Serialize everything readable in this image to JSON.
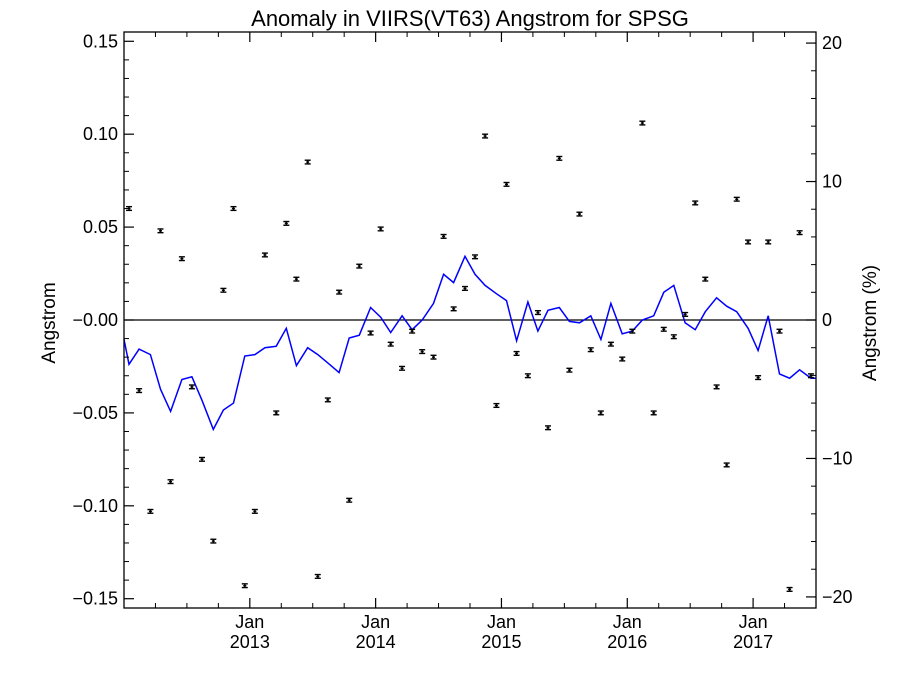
{
  "chart_data": {
    "type": "scatter",
    "title": "Anomaly in VIIRS(VT63) Angstrom for SPSG",
    "ylabel": "Angstrom",
    "y2label": "Angstrom (%)",
    "ylim": [
      -0.155,
      0.155
    ],
    "y2lim": [
      -20.8,
      20.8
    ],
    "xlim": [
      2012.0,
      2017.5
    ],
    "grid": false,
    "zero_line": true,
    "yticks": [
      -0.15,
      -0.1,
      -0.05,
      0.0,
      0.05,
      0.1,
      0.15
    ],
    "ytick_labels": [
      "−0.15",
      "−0.10",
      "−0.05",
      "−0.00",
      "0.05",
      "0.10",
      "0.15"
    ],
    "y2ticks": [
      -20,
      -10,
      0,
      10,
      20
    ],
    "y2tick_labels": [
      "−20",
      "−10",
      "0",
      "10",
      "20"
    ],
    "xticks": [
      {
        "x": 2013.0,
        "month": "Jan",
        "year": "2013"
      },
      {
        "x": 2014.0,
        "month": "Jan",
        "year": "2014"
      },
      {
        "x": 2015.0,
        "month": "Jan",
        "year": "2015"
      },
      {
        "x": 2016.0,
        "month": "Jan",
        "year": "2016"
      },
      {
        "x": 2017.0,
        "month": "Jan",
        "year": "2017"
      }
    ],
    "series": [
      {
        "kind": "points_with_errorbars",
        "color": "#000000",
        "error": 0.001,
        "x": [
          2012.04,
          2012.12,
          2012.21,
          2012.29,
          2012.37,
          2012.46,
          2012.54,
          2012.62,
          2012.71,
          2012.79,
          2012.87,
          2012.96,
          2013.04,
          2013.12,
          2013.21,
          2013.29,
          2013.37,
          2013.46,
          2013.54,
          2013.62,
          2013.71,
          2013.79,
          2013.87,
          2013.96,
          2014.04,
          2014.12,
          2014.21,
          2014.29,
          2014.37,
          2014.46,
          2014.54,
          2014.62,
          2014.71,
          2014.79,
          2014.87,
          2014.96,
          2015.04,
          2015.12,
          2015.21,
          2015.29,
          2015.37,
          2015.46,
          2015.54,
          2015.62,
          2015.71,
          2015.79,
          2015.87,
          2015.96,
          2016.04,
          2016.12,
          2016.21,
          2016.29,
          2016.37,
          2016.46,
          2016.54,
          2016.62,
          2016.71,
          2016.79,
          2016.87,
          2016.96,
          2017.04,
          2017.12,
          2017.21,
          2017.29,
          2017.37,
          2017.46
        ],
        "y": [
          0.06,
          -0.038,
          -0.103,
          0.048,
          -0.087,
          0.033,
          -0.036,
          -0.075,
          -0.119,
          0.016,
          0.06,
          -0.143,
          -0.103,
          0.035,
          -0.05,
          0.052,
          0.022,
          0.085,
          -0.138,
          -0.043,
          0.015,
          -0.097,
          0.029,
          -0.007,
          0.049,
          -0.013,
          -0.026,
          -0.006,
          -0.017,
          -0.02,
          0.045,
          0.006,
          0.017,
          0.034,
          0.099,
          -0.046,
          0.073,
          -0.018,
          -0.03,
          0.004,
          -0.058,
          0.087,
          -0.027,
          0.057,
          -0.016,
          -0.05,
          -0.013,
          -0.021,
          -0.006,
          0.106,
          -0.05,
          -0.005,
          -0.009,
          0.003,
          0.063,
          0.022,
          -0.036,
          -0.078,
          0.065,
          0.042,
          -0.031,
          0.042,
          -0.006,
          -0.145,
          0.047,
          -0.03
        ]
      },
      {
        "kind": "line",
        "axis": "y2",
        "color": "#0000ff",
        "x": [
          2012.0,
          2012.04,
          2012.12,
          2012.21,
          2012.29,
          2012.37,
          2012.46,
          2012.54,
          2012.62,
          2012.71,
          2012.79,
          2012.87,
          2012.96,
          2013.04,
          2013.12,
          2013.21,
          2013.29,
          2013.37,
          2013.46,
          2013.54,
          2013.62,
          2013.71,
          2013.79,
          2013.87,
          2013.96,
          2014.04,
          2014.12,
          2014.21,
          2014.29,
          2014.37,
          2014.46,
          2014.54,
          2014.62,
          2014.71,
          2014.79,
          2014.87,
          2014.96,
          2015.04,
          2015.12,
          2015.21,
          2015.29,
          2015.37,
          2015.46,
          2015.54,
          2015.62,
          2015.71,
          2015.79,
          2015.87,
          2015.96,
          2016.04,
          2016.12,
          2016.21,
          2016.29,
          2016.37,
          2016.46,
          2016.54,
          2016.62,
          2016.71,
          2016.79,
          2016.87,
          2016.96,
          2017.04,
          2017.12,
          2017.21,
          2017.29,
          2017.37,
          2017.46,
          2017.5
        ],
        "y": [
          -1.4,
          -3.2,
          -2.1,
          -2.5,
          -5.0,
          -6.6,
          -4.3,
          -4.1,
          -5.8,
          -7.9,
          -6.5,
          -6.0,
          -2.6,
          -2.5,
          -2.0,
          -1.9,
          -0.6,
          -3.3,
          -2.0,
          -2.5,
          -3.1,
          -3.8,
          -1.3,
          -1.1,
          0.9,
          0.2,
          -0.9,
          0.3,
          -0.7,
          0.0,
          1.2,
          3.3,
          2.7,
          4.6,
          3.3,
          2.5,
          1.9,
          1.4,
          -1.5,
          1.3,
          -0.8,
          0.7,
          0.9,
          -0.1,
          -0.2,
          0.3,
          -1.4,
          1.2,
          -1.0,
          -0.8,
          0.0,
          0.3,
          2.0,
          2.5,
          -0.2,
          -0.7,
          0.6,
          1.6,
          1.0,
          0.6,
          -0.6,
          -2.2,
          0.3,
          -3.9,
          -4.2,
          -3.6,
          -4.2,
          -4.2
        ]
      }
    ]
  }
}
